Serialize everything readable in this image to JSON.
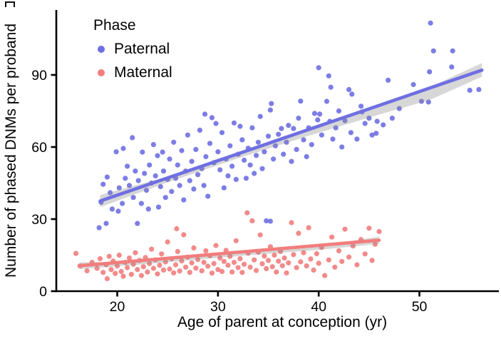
{
  "figure": {
    "background": "#ffffff"
  },
  "legend": {
    "title": "Phase",
    "items": [
      {
        "label": "Paternal",
        "color": "#6f6fe3"
      },
      {
        "label": "Maternal",
        "color": "#f27d7d"
      }
    ]
  },
  "chart_data": {
    "type": "scatter",
    "title": "",
    "xlabel": "Age of parent at conception (yr)",
    "ylabel": "Number of phased DNMs per proband",
    "xlim": [
      14,
      58
    ],
    "ylim": [
      0,
      117
    ],
    "xticks": [
      20,
      30,
      40,
      50
    ],
    "yticks": [
      0,
      30,
      60,
      90
    ],
    "grid": false,
    "legend_position": "inside-top-left",
    "axis_color": "#000000",
    "band_color": "#8a8a8a",
    "series": [
      {
        "name": "Paternal",
        "color": "#6f6fe3",
        "regression": {
          "x": [
            18.3,
            56.2
          ],
          "y": [
            37.5,
            92.0
          ],
          "slope_dnms_per_yr": 1.44
        },
        "ci": [
          [
            18.3,
            35.0,
            40.0
          ],
          [
            25,
            45.3,
            47.7
          ],
          [
            32,
            55.3,
            57.5
          ],
          [
            39,
            64.7,
            67.5
          ],
          [
            46,
            73.5,
            77.5
          ],
          [
            51,
            79.5,
            84.9
          ],
          [
            56.2,
            89.3,
            94.9
          ]
        ],
        "points": [
          [
            18.2,
            26.4
          ],
          [
            18.4,
            37
          ],
          [
            18.6,
            44.5
          ],
          [
            18.9,
            28.2
          ],
          [
            19,
            47.5
          ],
          [
            19.3,
            41
          ],
          [
            19.5,
            34.2
          ],
          [
            19.9,
            58
          ],
          [
            20.1,
            33.3
          ],
          [
            20.2,
            43
          ],
          [
            20.5,
            36.5
          ],
          [
            20.6,
            59.4
          ],
          [
            20.8,
            47
          ],
          [
            21,
            52
          ],
          [
            21.2,
            44
          ],
          [
            21.5,
            63.9
          ],
          [
            21.6,
            39
          ],
          [
            21.8,
            50
          ],
          [
            22,
            28.2
          ],
          [
            22.1,
            46
          ],
          [
            22.4,
            36.5
          ],
          [
            22.5,
            57.9
          ],
          [
            22.7,
            49
          ],
          [
            22.9,
            42
          ],
          [
            23.1,
            34.2
          ],
          [
            23.2,
            52.5
          ],
          [
            23.4,
            45
          ],
          [
            23.6,
            61
          ],
          [
            23.8,
            48
          ],
          [
            24,
            56.4
          ],
          [
            24.1,
            35
          ],
          [
            24.3,
            43.5
          ],
          [
            24.5,
            57.9
          ],
          [
            24.6,
            50
          ],
          [
            24.8,
            39
          ],
          [
            25,
            46.5
          ],
          [
            25.2,
            55
          ],
          [
            25.4,
            41.5
          ],
          [
            25.6,
            62
          ],
          [
            25.8,
            47
          ],
          [
            26,
            52.5
          ],
          [
            26.2,
            44
          ],
          [
            26.4,
            58.5
          ],
          [
            26.6,
            38
          ],
          [
            26.8,
            50
          ],
          [
            27,
            65
          ],
          [
            27.2,
            46
          ],
          [
            27.4,
            54
          ],
          [
            27.6,
            42.5
          ],
          [
            27.8,
            59
          ],
          [
            28,
            48.5
          ],
          [
            28.2,
            67
          ],
          [
            28.4,
            51
          ],
          [
            28.6,
            44
          ],
          [
            28.7,
            73.7
          ],
          [
            28.8,
            56
          ],
          [
            29,
            39.5
          ],
          [
            29.2,
            61.5
          ],
          [
            29.4,
            72.2
          ],
          [
            29.6,
            53.5
          ],
          [
            29.8,
            69.8
          ],
          [
            30,
            58
          ],
          [
            30.2,
            50.5
          ],
          [
            30.4,
            66
          ],
          [
            30.6,
            43
          ],
          [
            30.8,
            55
          ],
          [
            31,
            48
          ],
          [
            31.2,
            60.5
          ],
          [
            31.4,
            52
          ],
          [
            31.6,
            70
          ],
          [
            31.8,
            46.5
          ],
          [
            32,
            57
          ],
          [
            32.2,
            68.6
          ],
          [
            32.4,
            63
          ],
          [
            32.6,
            54.5
          ],
          [
            32.8,
            47
          ],
          [
            33,
            59.5
          ],
          [
            33.2,
            52.5
          ],
          [
            33.4,
            68
          ],
          [
            33.6,
            49
          ],
          [
            33.8,
            56.5
          ],
          [
            34,
            62
          ],
          [
            34.2,
            72.7
          ],
          [
            34.4,
            51
          ],
          [
            34.6,
            58
          ],
          [
            34.8,
            29.3
          ],
          [
            35,
            64.5
          ],
          [
            35.2,
            75.4
          ],
          [
            35.3,
            78.1
          ],
          [
            35.5,
            55
          ],
          [
            35.7,
            60.5
          ],
          [
            36,
            65.3
          ],
          [
            36.3,
            67.7
          ],
          [
            36.5,
            57
          ],
          [
            36.8,
            62
          ],
          [
            37,
            69
          ],
          [
            37.3,
            54
          ],
          [
            37.5,
            67.7
          ],
          [
            37.8,
            59
          ],
          [
            38,
            72
          ],
          [
            38.2,
            79.1
          ],
          [
            38.5,
            63
          ],
          [
            38.8,
            56
          ],
          [
            39,
            68
          ],
          [
            39.3,
            61
          ],
          [
            39.6,
            74
          ],
          [
            39.9,
            71.3
          ],
          [
            40,
            93
          ],
          [
            40.1,
            73.7
          ],
          [
            40.3,
            65
          ],
          [
            40.8,
            79
          ],
          [
            41,
            89.6
          ],
          [
            41.1,
            70.7
          ],
          [
            41.2,
            84.9
          ],
          [
            41.4,
            63.3
          ],
          [
            41.7,
            68
          ],
          [
            42,
            75
          ],
          [
            42.3,
            60
          ],
          [
            42.6,
            71
          ],
          [
            43,
            83.9
          ],
          [
            43.2,
            66
          ],
          [
            43.3,
            82
          ],
          [
            43.8,
            63.3
          ],
          [
            44.2,
            77
          ],
          [
            44.3,
            74.6
          ],
          [
            44.6,
            69.8
          ],
          [
            45,
            72
          ],
          [
            45.3,
            65
          ],
          [
            45.7,
            65.7
          ],
          [
            45.8,
            70.7
          ],
          [
            46.4,
            69.2
          ],
          [
            46.9,
            87.8
          ],
          [
            47.3,
            72
          ],
          [
            48,
            76
          ],
          [
            49.4,
            86
          ],
          [
            50.2,
            79
          ],
          [
            50.9,
            78.7
          ],
          [
            51,
            91.3
          ],
          [
            51.1,
            111.6
          ],
          [
            51.4,
            100
          ],
          [
            53.2,
            93.3
          ],
          [
            53.3,
            100
          ],
          [
            55,
            83.6
          ],
          [
            55.9,
            83.9
          ],
          [
            35.2,
            29.1
          ]
        ]
      },
      {
        "name": "Maternal",
        "color": "#f27d7d",
        "regression": {
          "x": [
            16.3,
            46.0
          ],
          "y": [
            10.6,
            21.2
          ],
          "slope_dnms_per_yr": 0.36
        },
        "ci": [
          [
            16.3,
            9.2,
            12.0
          ],
          [
            22,
            11.0,
            12.4
          ],
          [
            28,
            13.2,
            14.4
          ],
          [
            34,
            15.3,
            16.5
          ],
          [
            40,
            17.2,
            18.8
          ],
          [
            46,
            19.7,
            22.7
          ]
        ],
        "points": [
          [
            15.9,
            15.7
          ],
          [
            16.3,
            10.5
          ],
          [
            17,
            8.5
          ],
          [
            17.5,
            12
          ],
          [
            18,
            9.5
          ],
          [
            18.3,
            13.5
          ],
          [
            18.6,
            7.8
          ],
          [
            18.9,
            11
          ],
          [
            19,
            5.2
          ],
          [
            19.2,
            14.5
          ],
          [
            19.4,
            9
          ],
          [
            19.6,
            12.5
          ],
          [
            19.8,
            7.4
          ],
          [
            20,
            10.5
          ],
          [
            20.2,
            15
          ],
          [
            20.4,
            8.2
          ],
          [
            20.6,
            6.2
          ],
          [
            20.8,
            12
          ],
          [
            21,
            9.8
          ],
          [
            21.2,
            13.8
          ],
          [
            21.4,
            7
          ],
          [
            21.6,
            11.2
          ],
          [
            21.8,
            16
          ],
          [
            22,
            9
          ],
          [
            22.2,
            12.8
          ],
          [
            22.4,
            6.5
          ],
          [
            22.6,
            10.2
          ],
          [
            22.8,
            14
          ],
          [
            23,
            8
          ],
          [
            23.2,
            11.5
          ],
          [
            23.4,
            17.5
          ],
          [
            23.6,
            9.5
          ],
          [
            23.8,
            13
          ],
          [
            24,
            7.2
          ],
          [
            24.2,
            10.8
          ],
          [
            24.4,
            15.5
          ],
          [
            24.6,
            8.8
          ],
          [
            24.8,
            12.2
          ],
          [
            25,
            20.5
          ],
          [
            25.2,
            9.2
          ],
          [
            25.4,
            13.5
          ],
          [
            25.6,
            7.6
          ],
          [
            25.8,
            11
          ],
          [
            25.9,
            26
          ],
          [
            26,
            16.5
          ],
          [
            26.2,
            8.4
          ],
          [
            26.4,
            12.6
          ],
          [
            26.6,
            23.5
          ],
          [
            26.8,
            10
          ],
          [
            27,
            14.2
          ],
          [
            27.2,
            7.8
          ],
          [
            27.4,
            11.8
          ],
          [
            27.6,
            18
          ],
          [
            27.8,
            9.6
          ],
          [
            28,
            13.2
          ],
          [
            28.4,
            8.5
          ],
          [
            28.6,
            12
          ],
          [
            28.8,
            16.8
          ],
          [
            29,
            10.4
          ],
          [
            29.2,
            14.8
          ],
          [
            29.4,
            7.5
          ],
          [
            29.6,
            11.5
          ],
          [
            29.8,
            19
          ],
          [
            30,
            9
          ],
          [
            30.2,
            13.8
          ],
          [
            30.4,
            8.2
          ],
          [
            30.6,
            12.4
          ],
          [
            30.8,
            17
          ],
          [
            31,
            10.8
          ],
          [
            31.2,
            14.5
          ],
          [
            31.4,
            8
          ],
          [
            31.6,
            12
          ],
          [
            31.8,
            21
          ],
          [
            32,
            9.8
          ],
          [
            32.2,
            13.5
          ],
          [
            32.4,
            7.8
          ],
          [
            32.6,
            11.2
          ],
          [
            32.9,
            32.6
          ],
          [
            33,
            15.8
          ],
          [
            33.2,
            10
          ],
          [
            33.4,
            29.3
          ],
          [
            33.6,
            13
          ],
          [
            33.8,
            8.6
          ],
          [
            34,
            16.2
          ],
          [
            34.2,
            23.4
          ],
          [
            34.4,
            11.4
          ],
          [
            34.6,
            14.6
          ],
          [
            34.8,
            9.4
          ],
          [
            35,
            12.8
          ],
          [
            35.2,
            18.5
          ],
          [
            35.4,
            10.2
          ],
          [
            35.6,
            15
          ],
          [
            35.8,
            8
          ],
          [
            36,
            12.5
          ],
          [
            36.2,
            16.5
          ],
          [
            36.4,
            10.6
          ],
          [
            36.6,
            13.8
          ],
          [
            36.8,
            7.6
          ],
          [
            37,
            11.8
          ],
          [
            37.3,
            28.5
          ],
          [
            37.5,
            15.2
          ],
          [
            37.8,
            9.8
          ],
          [
            38,
            24.1
          ],
          [
            38.2,
            12.2
          ],
          [
            38.5,
            16
          ],
          [
            38.8,
            10.5
          ],
          [
            39,
            26.4
          ],
          [
            39.2,
            13.4
          ],
          [
            39.5,
            8.8
          ],
          [
            39.8,
            15.6
          ],
          [
            40,
            11.6
          ],
          [
            40.3,
            18.2
          ],
          [
            40.6,
            6.5
          ],
          [
            41,
            13
          ],
          [
            41.3,
            22.5
          ],
          [
            41.6,
            10
          ],
          [
            42,
            16.8
          ],
          [
            42.3,
            12.4
          ],
          [
            42.6,
            25.8
          ],
          [
            43,
            14.2
          ],
          [
            43.4,
            18.8
          ],
          [
            43.8,
            11
          ],
          [
            44.2,
            21.5
          ],
          [
            44.6,
            15.5
          ],
          [
            45,
            26.2
          ],
          [
            45.3,
            12.8
          ],
          [
            45.6,
            19.5
          ],
          [
            46,
            24.8
          ]
        ]
      }
    ]
  }
}
